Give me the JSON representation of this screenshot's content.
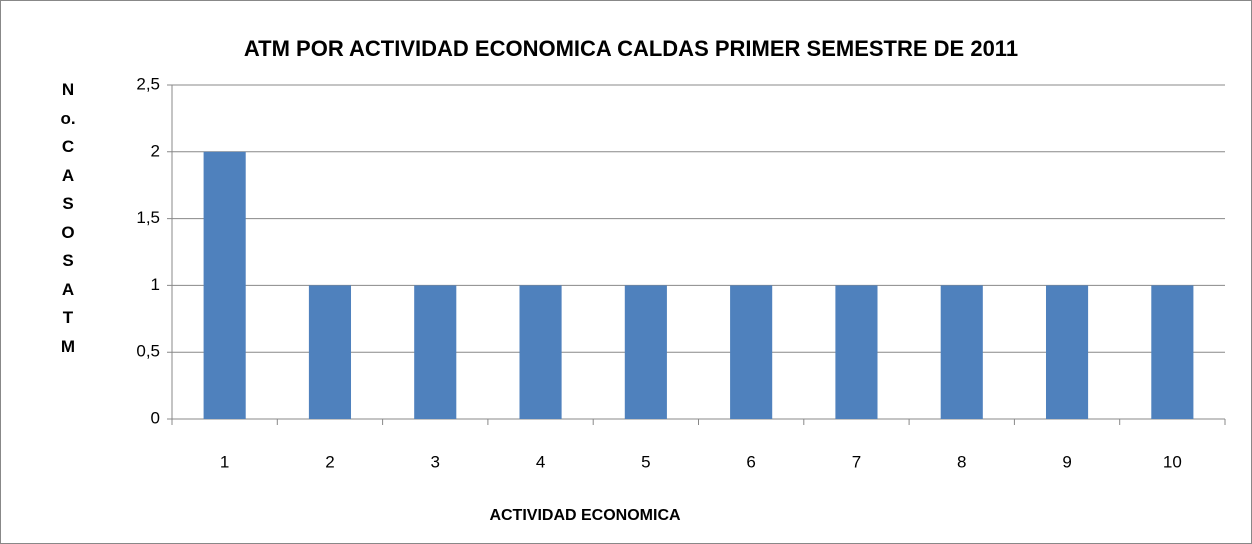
{
  "chart_data": {
    "type": "bar",
    "title": "ATM POR ACTIVIDAD ECONOMICA CALDAS PRIMER SEMESTRE DE 2011",
    "x_label": "ACTIVIDAD ECONOMICA",
    "y_label": "No.CASOSATM",
    "categories": [
      "1",
      "2",
      "3",
      "4",
      "5",
      "6",
      "7",
      "8",
      "9",
      "10"
    ],
    "values": [
      2,
      1,
      1,
      1,
      1,
      1,
      1,
      1,
      1,
      1
    ],
    "color": "#4f81bd",
    "ylim": [
      0,
      2.5
    ],
    "yticks": [
      0,
      {
        "value": 0.5,
        "label": "0,5"
      },
      1,
      {
        "value": 1.5,
        "label": "1,5"
      },
      2,
      {
        "value": 2.5,
        "label": "2,5"
      }
    ],
    "grid": true
  }
}
